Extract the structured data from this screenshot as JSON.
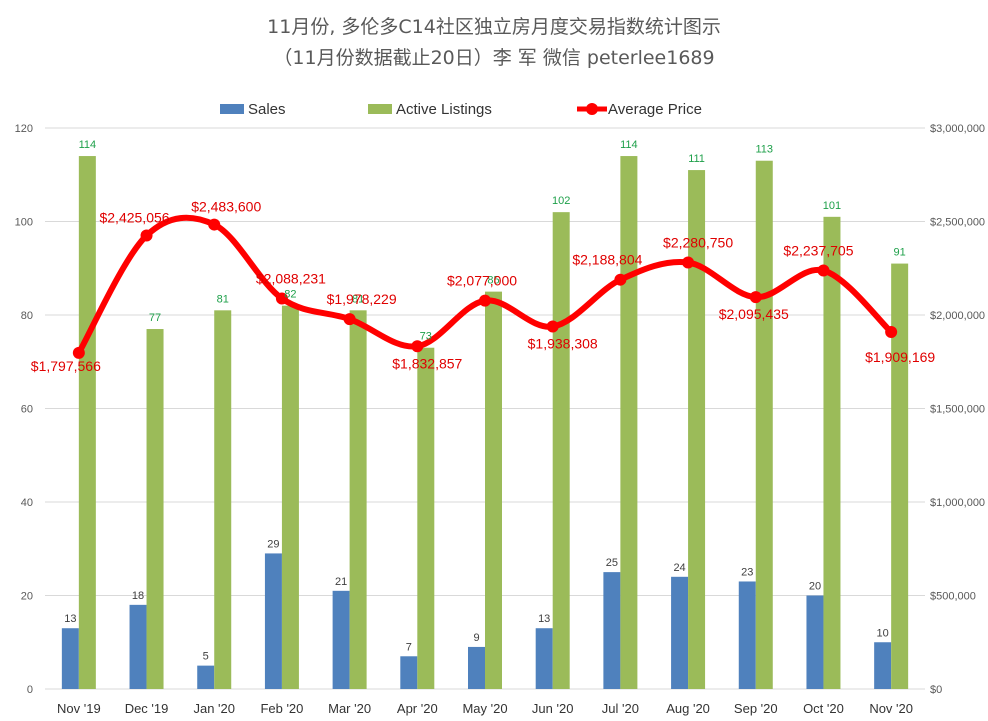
{
  "chart_data": {
    "type": "bar",
    "title": "11月份, 多伦多C14社区独立房月度交易指数统计图示",
    "subtitle": "（11月份数据截止20日）李 军  微信  peterlee1689",
    "categories": [
      "Nov '19",
      "Dec '19",
      "Jan '20",
      "Feb '20",
      "Mar '20",
      "Apr '20",
      "May '20",
      "Jun '20",
      "Jul '20",
      "Aug '20",
      "Sep '20",
      "Oct '20",
      "Nov '20"
    ],
    "series": [
      {
        "name": "Sales",
        "type": "bar",
        "axis": "left",
        "color": "#4f81bd",
        "values": [
          13,
          18,
          5,
          29,
          21,
          7,
          9,
          13,
          25,
          24,
          23,
          20,
          10
        ],
        "labels": [
          "13",
          "18",
          "5",
          "29",
          "21",
          "7",
          "9",
          "13",
          "25",
          "24",
          "23",
          "20",
          "10"
        ]
      },
      {
        "name": "Active Listings",
        "type": "bar",
        "axis": "left",
        "color": "#9bbb59",
        "values": [
          114,
          77,
          81,
          82,
          81,
          73,
          85,
          102,
          114,
          111,
          113,
          101,
          91
        ],
        "labels": [
          "114",
          "77",
          "81",
          "82",
          "81",
          "73",
          "85",
          "102",
          "114",
          "111",
          "113",
          "101",
          "91"
        ]
      },
      {
        "name": "Average Price",
        "type": "line",
        "axis": "right",
        "color": "#ff0000",
        "values": [
          1797566,
          2425056,
          2483600,
          2088231,
          1978229,
          1832857,
          2077000,
          1938308,
          2188804,
          2280750,
          2095435,
          2237705,
          1909169
        ],
        "labels": [
          "$1,797,566",
          "$2,425,056",
          "$2,483,600",
          "$2,088,231",
          "$1,978,229",
          "$1,832,857",
          "$2,077,000",
          "$1,938,308",
          "$2,188,804",
          "$2,280,750",
          "$2,095,435",
          "$2,237,705",
          "$1,909,169"
        ]
      }
    ],
    "y_left": {
      "min": 0,
      "max": 120,
      "ticks": [
        "0",
        "20",
        "40",
        "60",
        "80",
        "100",
        "120"
      ]
    },
    "y_right": {
      "min": 0,
      "max": 3000000,
      "ticks": [
        "$0",
        "$500,000",
        "$1,000,000",
        "$1,500,000",
        "$2,000,000",
        "$2,500,000",
        "$3,000,000"
      ]
    },
    "grid": true,
    "legend": "top-center"
  }
}
